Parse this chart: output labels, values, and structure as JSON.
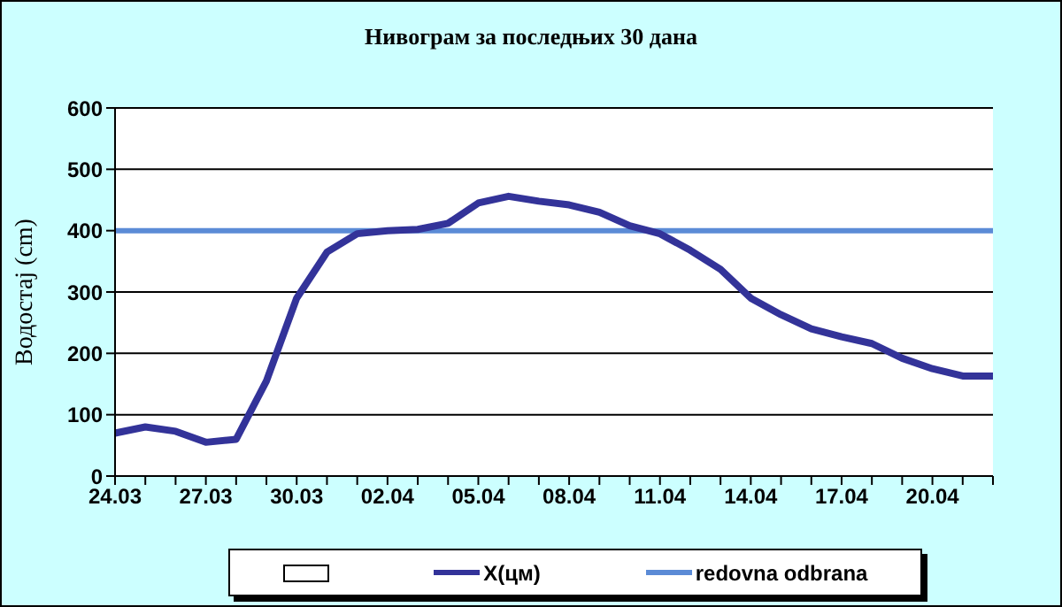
{
  "chart_data": {
    "type": "line",
    "title": "Нивограм за последњих 30 дана",
    "ylabel": "Водостај (cm)",
    "categories": [
      "24.03",
      null,
      null,
      "27.03",
      null,
      null,
      "30.03",
      null,
      null,
      "02.04",
      null,
      null,
      "05.04",
      null,
      null,
      "08.04",
      null,
      null,
      "11.04",
      null,
      null,
      "14.04",
      null,
      null,
      "17.04",
      null,
      null,
      "20.04",
      null,
      null
    ],
    "series": [
      {
        "name": "X(цм)",
        "color": "#333399",
        "values": [
          70,
          80,
          73,
          55,
          60,
          155,
          290,
          365,
          395,
          400,
          402,
          412,
          445,
          456,
          448,
          442,
          430,
          408,
          395,
          368,
          337,
          290,
          263,
          240,
          227,
          216,
          192,
          175,
          163,
          163
        ]
      }
    ],
    "ref_lines": [
      {
        "axis": "y",
        "value": 400,
        "label": "redovna odbrana",
        "color": "#5b8bd6"
      }
    ],
    "ylim": [
      0,
      600
    ],
    "yticks": [
      0,
      100,
      200,
      300,
      400,
      500,
      600
    ],
    "grid": "y",
    "legend": "bottom",
    "marker": "none",
    "line_style": "solid"
  }
}
